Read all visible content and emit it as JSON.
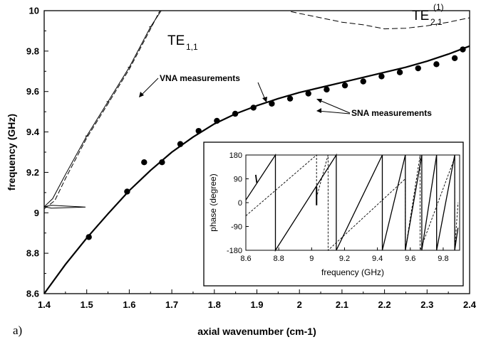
{
  "chart_data": [
    {
      "type": "line",
      "panel_label": "a)",
      "xlabel": "axial wavenumber (cm-1)",
      "ylabel": "frequency (GHz)",
      "xlim": [
        1.4,
        2.4
      ],
      "ylim": [
        8.6,
        10.0
      ],
      "xticks": [
        "1.4",
        "1.5",
        "1.6",
        "1.7",
        "1.8",
        "1.9",
        "2",
        "2.1",
        "2.2",
        "2.3",
        "2.4"
      ],
      "yticks": [
        "8.6",
        "8.8",
        "9",
        "9.2",
        "9.4",
        "9.6",
        "9.8",
        "10"
      ],
      "mode_labels": {
        "te11": {
          "main": "TE",
          "sub": "1,1"
        },
        "te21": {
          "main": "TE",
          "sub": "2,1",
          "sup": "(1)"
        }
      },
      "annotations": {
        "vna": "VNA measurements",
        "sna": "SNA measurements"
      },
      "series": [
        {
          "style": "solid",
          "x": [
            1.4,
            1.45,
            1.5,
            1.55,
            1.6,
            1.65,
            1.7,
            1.75,
            1.8,
            1.85,
            1.9,
            1.95,
            2.0,
            2.05,
            2.1,
            2.15,
            2.2,
            2.25,
            2.3,
            2.35,
            2.4
          ],
          "y": [
            8.6,
            8.745,
            8.875,
            8.995,
            9.11,
            9.21,
            9.3,
            9.375,
            9.44,
            9.49,
            9.53,
            9.565,
            9.595,
            9.62,
            9.645,
            9.67,
            9.695,
            9.72,
            9.75,
            9.785,
            9.825
          ]
        },
        {
          "style": "markers",
          "x": [
            1.505,
            1.595,
            1.635,
            1.677,
            1.72,
            1.763,
            1.806,
            1.849,
            1.892,
            1.935,
            1.978,
            2.021,
            2.064,
            2.107,
            2.15,
            2.193,
            2.236,
            2.279,
            2.322,
            2.365,
            2.384
          ],
          "y": [
            8.88,
            9.105,
            9.25,
            9.25,
            9.34,
            9.405,
            9.455,
            9.49,
            9.52,
            9.54,
            9.565,
            9.59,
            9.61,
            9.63,
            9.65,
            9.675,
            9.695,
            9.715,
            9.735,
            9.765,
            9.808
          ]
        },
        {
          "style": "solid",
          "x": [
            1.4,
            1.42,
            1.45,
            1.5,
            1.55,
            1.6,
            1.65,
            1.675
          ],
          "y": [
            9.03,
            9.07,
            9.19,
            9.38,
            9.55,
            9.72,
            9.92,
            10.0
          ]
        },
        {
          "style": "dashed",
          "x": [
            1.4,
            1.425,
            1.45,
            1.5,
            1.55,
            1.6,
            1.65,
            1.672
          ],
          "y": [
            9.02,
            9.06,
            9.17,
            9.37,
            9.54,
            9.71,
            9.91,
            10.0
          ]
        },
        {
          "style": "dashed",
          "x": [
            1.98,
            2.05,
            2.1,
            2.15,
            2.2,
            2.25,
            2.3,
            2.35,
            2.4
          ],
          "y": [
            9.995,
            9.965,
            9.943,
            9.93,
            9.91,
            9.913,
            9.925,
            9.943,
            9.965
          ]
        }
      ]
    },
    {
      "type": "line",
      "inset": true,
      "xlabel": "frequency (GHz)",
      "ylabel": "phase (degree)",
      "xlim": [
        8.6,
        9.9
      ],
      "ylim": [
        -180,
        180
      ],
      "xticks": [
        "8.6",
        "8.8",
        "9",
        "9.2",
        "9.4",
        "9.6",
        "9.8"
      ],
      "yticks": [
        "180",
        "90",
        "0",
        "-90",
        "-180"
      ],
      "series": [
        {
          "style": "solid",
          "x": [
            8.6,
            8.78,
            8.78,
            9.15,
            9.15,
            9.43,
            9.43,
            9.57,
            9.57,
            9.67,
            9.67,
            9.76,
            9.76,
            9.87,
            9.87,
            9.89
          ],
          "y": [
            10,
            180,
            -180,
            180,
            -180,
            180,
            -180,
            180,
            -180,
            180,
            -180,
            180,
            -180,
            180,
            -180,
            -95
          ]
        },
        {
          "style": "dashed",
          "x": [
            8.6,
            9.03,
            9.03,
            9.1,
            9.1,
            9.57,
            9.57,
            9.66,
            9.66,
            9.87,
            9.87,
            9.89
          ],
          "y": [
            -50,
            180,
            20,
            180,
            -180,
            90,
            -180,
            180,
            -180,
            170,
            -180,
            0
          ]
        }
      ]
    }
  ]
}
